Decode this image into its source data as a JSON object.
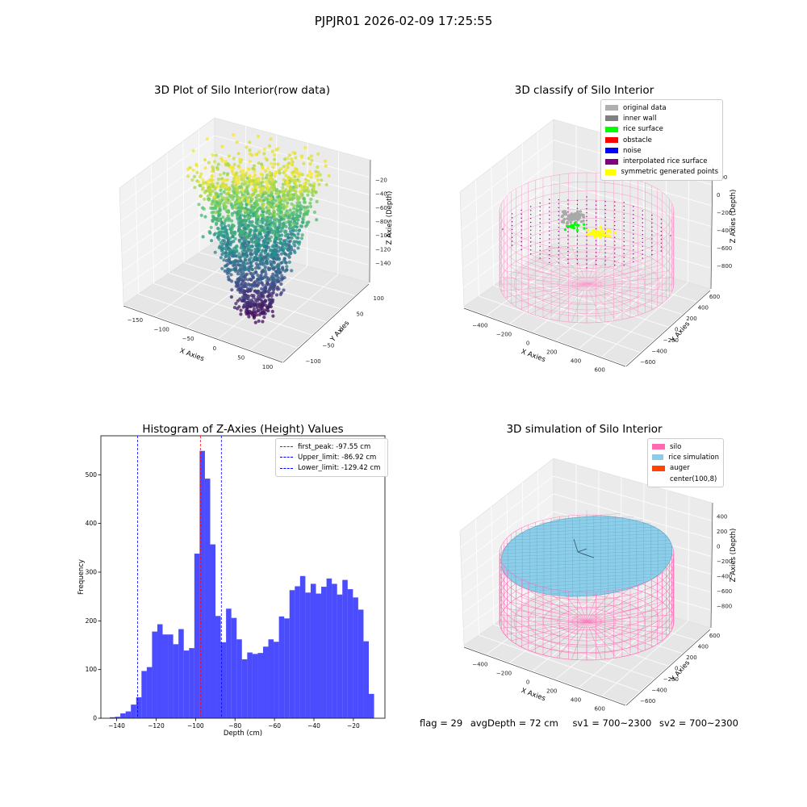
{
  "suptitle": "PJPJR01 2026-02-09 17:25:55",
  "footer": {
    "flag": "flag = 29",
    "avg_depth": "avgDepth = 72 cm",
    "sv1": "sv1 = 700~2300",
    "sv2": "sv2 = 700~2300"
  },
  "colors": {
    "viridis": [
      "#440154",
      "#3b528b",
      "#21918c",
      "#5ec962",
      "#fde725"
    ],
    "hist_bar": "#0000ff",
    "silo_wire": "#ff69b4",
    "rice": "#87ceeb"
  },
  "chart_data": [
    {
      "type": "scatter",
      "projection": "3d",
      "title": "3D Plot of Silo Interior(row data)",
      "xlabel": "X Axies",
      "ylabel": "Y Axies",
      "zlabel": "Z Axies (Depth)",
      "x_ticks": [
        "−150",
        "−100",
        "−50",
        "0",
        "50",
        "100"
      ],
      "y_ticks": [
        "−100",
        "−50",
        "0",
        "50",
        "100"
      ],
      "z_ticks": [
        "−20",
        "−40",
        "−60",
        "−80",
        "−100",
        "−120",
        "−140"
      ],
      "xlim": [
        -160,
        100
      ],
      "ylim": [
        -110,
        110
      ],
      "zlim": [
        -150,
        -10
      ],
      "colormap": "viridis",
      "grid": true
    },
    {
      "type": "scatter",
      "projection": "3d",
      "title": "3D classify of Silo Interior",
      "xlabel": "X Axies",
      "ylabel": "Y Axies",
      "zlabel": "Z Axies (Depth)",
      "x_ticks": [
        "−400",
        "−200",
        "0",
        "200",
        "400",
        "600"
      ],
      "y_ticks": [
        "−600",
        "−400",
        "−200",
        "0",
        "200",
        "400",
        "600"
      ],
      "z_ticks": [
        "200",
        "0",
        "−200",
        "−400",
        "−600",
        "−800"
      ],
      "z_partial_tick": "0",
      "legend": [
        {
          "label": "original data",
          "color": "#b0b0b0"
        },
        {
          "label": "inner wall",
          "color": "#808080"
        },
        {
          "label": "rice surface",
          "color": "#00ff00"
        },
        {
          "label": "obstacle",
          "color": "#ff0000"
        },
        {
          "label": "noise",
          "color": "#0000ff"
        },
        {
          "label": "interpolated rice surface",
          "color": "#800080"
        },
        {
          "label": "symmetric generated points",
          "color": "#ffff00"
        }
      ],
      "legend_placement": "top-right",
      "grid": true
    },
    {
      "type": "bar",
      "title": "Histogram of Z-Axies (Height) Values",
      "xlabel": "Depth (cm)",
      "ylabel": "Frequency",
      "xlim": [
        -148,
        -4
      ],
      "ylim": [
        0,
        580
      ],
      "x_ticks": [
        -140,
        -120,
        -100,
        -80,
        -60,
        -40,
        -20
      ],
      "x_tick_labels": [
        "−140",
        "−120",
        "−100",
        "−80",
        "−60",
        "−40",
        "−20"
      ],
      "y_ticks": [
        0,
        100,
        200,
        300,
        400,
        500
      ],
      "y_tick_labels": [
        "0",
        "100",
        "200",
        "300",
        "400",
        "500"
      ],
      "bin_start": -143.5,
      "bin_width": 2.68,
      "values": [
        2,
        3,
        10,
        14,
        28,
        43,
        97,
        105,
        178,
        193,
        172,
        172,
        152,
        183,
        139,
        144,
        338,
        549,
        492,
        357,
        210,
        156,
        225,
        206,
        162,
        121,
        135,
        132,
        134,
        147,
        162,
        157,
        209,
        205,
        263,
        271,
        292,
        258,
        276,
        256,
        270,
        287,
        276,
        254,
        284,
        265,
        248,
        223,
        158,
        50
      ],
      "vlines": [
        {
          "x": -97.55,
          "label": "first_peak: -97.55 cm",
          "color": "#ff0000"
        },
        {
          "x": -86.92,
          "label": "Upper_limit: -86.92 cm",
          "color": "#0000ff"
        },
        {
          "x": -129.42,
          "label": "Lower_limit: -129.42 cm",
          "color": "#0000ff"
        }
      ],
      "legend_placement": "top-right"
    },
    {
      "type": "surface",
      "projection": "3d",
      "title": "3D simulation of Silo Interior",
      "xlabel": "X Axies",
      "ylabel": "Y Axies",
      "zlabel": "Z Axies (Depth)",
      "x_ticks": [
        "−400",
        "−200",
        "0",
        "200",
        "400",
        "600"
      ],
      "y_ticks": [
        "−600",
        "−400",
        "−200",
        "0",
        "200",
        "400",
        "600"
      ],
      "z_ticks": [
        "400",
        "200",
        "0",
        "−200",
        "−400",
        "−600",
        "−800"
      ],
      "legend": [
        {
          "label": "silo",
          "color": "#ff69b4"
        },
        {
          "label": "rice simulation",
          "color": "#87ceeb"
        },
        {
          "label": "auger",
          "color": "#ff4500"
        },
        {
          "label": "center(100,8)",
          "color": "#ffffff"
        }
      ],
      "legend_placement": "top-right",
      "grid": true
    }
  ]
}
